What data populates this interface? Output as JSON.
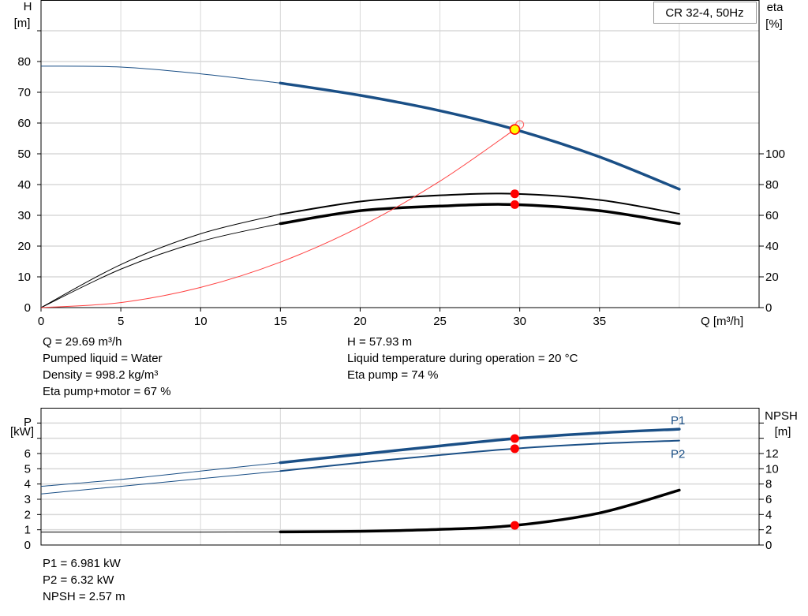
{
  "chart_data": [
    {
      "type": "line",
      "title": "CR 32-4, 50Hz",
      "xlabel": "Q [m³/h]",
      "ylabel": [
        "H",
        "[m]"
      ],
      "y2label": [
        "eta",
        "[%]"
      ],
      "xlim": [
        0,
        45
      ],
      "ylim": [
        0,
        100
      ],
      "y2lim": [
        0,
        200
      ],
      "xticks": [
        0,
        5,
        10,
        15,
        20,
        25,
        30,
        35
      ],
      "yticks": [
        0,
        10,
        20,
        30,
        40,
        50,
        60,
        70,
        80
      ],
      "y2ticks": [
        0,
        20,
        40,
        60,
        80,
        100
      ],
      "grid": true,
      "x": [
        0,
        5,
        10,
        15,
        20,
        25,
        29.69,
        35,
        40
      ],
      "series": [
        {
          "id": "head",
          "axis": "left",
          "color": "#1a4f86",
          "values": [
            78.5,
            78.2,
            76.0,
            73.0,
            69.0,
            64.0,
            57.93,
            49.0,
            38.5
          ]
        },
        {
          "id": "eta-pump",
          "axis": "right",
          "color": "#000000",
          "values": [
            0,
            28,
            48,
            60.7,
            69,
            73,
            74,
            70,
            61
          ]
        },
        {
          "id": "eta-pump-motor",
          "axis": "right",
          "color": "#000000",
          "values": [
            0,
            25,
            43,
            54.6,
            63,
            66,
            67,
            63,
            54.6
          ]
        },
        {
          "id": "system-curve",
          "axis": "left",
          "color": "#ff4040",
          "values": [
            0,
            1.64,
            6.57,
            14.8,
            26.3,
            41.1,
            57.93,
            null,
            null
          ]
        }
      ],
      "duty_point": {
        "Q": 29.69,
        "H": 57.93,
        "eta_pump": 74,
        "eta_pump_motor": 67
      },
      "operating_range_start": 15
    },
    {
      "type": "line",
      "ylabel": [
        "P",
        "[kW]"
      ],
      "y2label": [
        "NPSH",
        "[m]"
      ],
      "xlim": [
        0,
        45
      ],
      "ylim": [
        0,
        9
      ],
      "y2lim": [
        0,
        18
      ],
      "yticks": [
        0,
        1,
        2,
        3,
        4,
        5,
        6
      ],
      "y2ticks": [
        0,
        2,
        4,
        6,
        8,
        10,
        12
      ],
      "grid": true,
      "x": [
        0,
        5,
        10,
        15,
        20,
        25,
        29.69,
        35,
        40
      ],
      "series": [
        {
          "id": "p1",
          "name": "P1",
          "axis": "left",
          "color": "#1a4f86",
          "values": [
            3.85,
            4.3,
            4.85,
            5.4,
            5.95,
            6.5,
            6.98,
            7.35,
            7.6
          ]
        },
        {
          "id": "p2",
          "name": "P2",
          "axis": "left",
          "color": "#1a4f86",
          "values": [
            3.35,
            3.85,
            4.35,
            4.85,
            5.4,
            5.9,
            6.32,
            6.65,
            6.85
          ]
        },
        {
          "id": "npsh",
          "axis": "right",
          "color": "#000000",
          "values": [
            1.7,
            1.7,
            1.7,
            1.72,
            1.8,
            2.05,
            2.57,
            4.2,
            7.2
          ]
        }
      ],
      "duty_point": {
        "Q": 29.69,
        "P1": 6.981,
        "P2": 6.32,
        "NPSH": 2.57
      }
    }
  ],
  "info_top_left": [
    "Q = 29.69 m³/h",
    "Pumped liquid = Water",
    "Density = 998.2 kg/m³",
    "Eta pump+motor = 67 %"
  ],
  "info_top_right": [
    "H = 57.93 m",
    "Liquid temperature during operation = 20 °C",
    "Eta pump = 74 %"
  ],
  "info_bottom": [
    "P1 = 6.981 kW",
    "P2 = 6.32 kW",
    "NPSH = 2.57 m"
  ],
  "colors": {
    "head": "#1a4f86",
    "duty_point": "#ff0000",
    "duty_highlight": "#ffff00",
    "grid": "#d8d8d8"
  }
}
